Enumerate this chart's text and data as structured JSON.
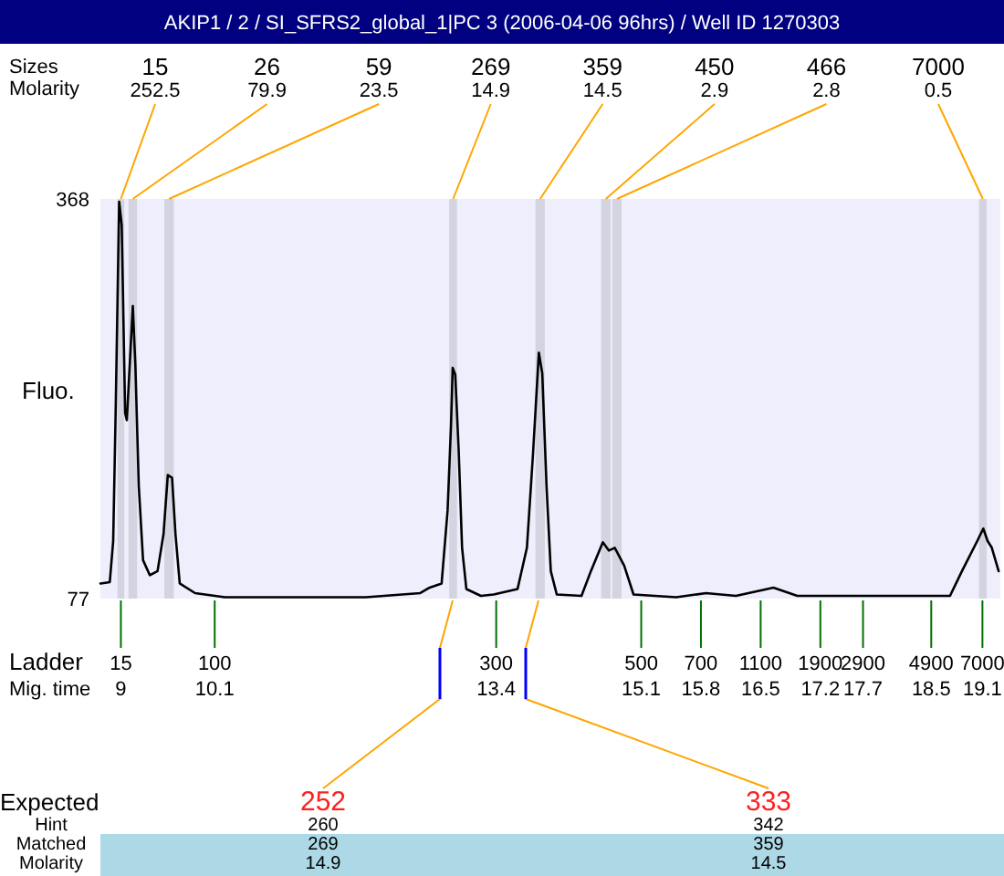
{
  "chart_data": {
    "type": "line",
    "title": "AKIP1 / 2 / SI_SFRS2_global_1|PC 3 (2006-04-06 96hrs) / Well ID 1270303",
    "ylabel": "Fluo.",
    "xlabel": "Mig. time",
    "xlim": [
      8.76,
      19.31
    ],
    "xticks": [
      9,
      10.1,
      13.4,
      15.1,
      15.8,
      16.5,
      17.2,
      17.7,
      18.5,
      19.1
    ],
    "ylim": [
      77,
      368
    ],
    "yticks": [
      77,
      368
    ],
    "color": "#000000",
    "x": [
      8.76,
      8.87,
      8.91,
      8.94,
      8.98,
      9.01,
      9.05,
      9.07,
      9.14,
      9.17,
      9.21,
      9.26,
      9.34,
      9.43,
      9.5,
      9.55,
      9.6,
      9.64,
      9.69,
      9.87,
      10.22,
      11.87,
      12.51,
      12.62,
      12.76,
      12.83,
      12.87,
      12.89,
      12.92,
      12.96,
      13.0,
      13.05,
      13.22,
      13.37,
      13.65,
      13.76,
      13.83,
      13.9,
      13.94,
      13.99,
      14.04,
      14.11,
      14.4,
      14.51,
      14.65,
      14.72,
      14.79,
      14.9,
      15.01,
      15.51,
      15.86,
      16.21,
      16.65,
      16.93,
      18.72,
      18.86,
      19.04,
      19.11,
      19.16,
      19.21,
      19.29
    ],
    "values": [
      88,
      89,
      119,
      217,
      366,
      349,
      212,
      207,
      290,
      247,
      159,
      105,
      94,
      97,
      124,
      167,
      165,
      124,
      88,
      81,
      78,
      78,
      81,
      85,
      88,
      141,
      203,
      245,
      240,
      185,
      114,
      84,
      79,
      80,
      84,
      114,
      181,
      256,
      241,
      159,
      97,
      80,
      79,
      97,
      118,
      112,
      114,
      101,
      80,
      78,
      81,
      79,
      85,
      79,
      79,
      97,
      119,
      128,
      119,
      114,
      97
    ],
    "bands": [
      {
        "axis": "x",
        "from": 8.96,
        "to": 9.04,
        "label": "15",
        "color": "#d4d4e0"
      },
      {
        "axis": "x",
        "from": 9.09,
        "to": 9.19,
        "label": "26",
        "color": "#d4d4e0"
      },
      {
        "axis": "x",
        "from": 9.51,
        "to": 9.62,
        "label": "59",
        "color": "#d4d4e0"
      },
      {
        "axis": "x",
        "from": 12.85,
        "to": 12.94,
        "label": "269",
        "color": "#d4d4e0"
      },
      {
        "axis": "x",
        "from": 13.86,
        "to": 13.97,
        "label": "359",
        "color": "#d4d4e0"
      },
      {
        "axis": "x",
        "from": 14.63,
        "to": 14.74,
        "label": "450",
        "color": "#d4d4e0"
      },
      {
        "axis": "x",
        "from": 14.76,
        "to": 14.87,
        "label": "466",
        "color": "#d4d4e0"
      },
      {
        "axis": "x",
        "from": 19.06,
        "to": 19.15,
        "label": "7000",
        "color": "#d4d4e0"
      }
    ],
    "annotations": [
      "Sizes",
      "Molarity",
      {
        "text": "252.5",
        "x": 9.0,
        "y": 368
      },
      {
        "text": "79.9",
        "x": 9.14,
        "y": 368
      },
      {
        "text": "23.5",
        "x": 9.57,
        "y": 368
      },
      {
        "text": "14.9",
        "x": 12.9,
        "y": 368
      },
      {
        "text": "14.5",
        "x": 13.92,
        "y": 368
      },
      {
        "text": "2.9",
        "x": 14.69,
        "y": 368
      },
      {
        "text": "2.8",
        "x": 14.82,
        "y": 368
      },
      {
        "text": "0.5",
        "x": 19.11,
        "y": 368
      },
      "Ladder",
      {
        "text": "15",
        "x": 9,
        "y": 77
      },
      {
        "text": "100",
        "x": 10.1,
        "y": 77
      },
      {
        "text": "300",
        "x": 13.4,
        "y": 77
      },
      {
        "text": "500",
        "x": 15.1,
        "y": 77
      },
      {
        "text": "700",
        "x": 15.8,
        "y": 77
      },
      {
        "text": "1100",
        "x": 16.5,
        "y": 77
      },
      {
        "text": "1900",
        "x": 17.2,
        "y": 77
      },
      {
        "text": "2900",
        "x": 17.7,
        "y": 77
      },
      {
        "text": "4900",
        "x": 18.5,
        "y": 77
      },
      {
        "text": "7000",
        "x": 19.1,
        "y": 77
      },
      "Expected",
      "Hint",
      "Matched",
      "Molarity",
      "252",
      "260",
      "269",
      "14.9",
      "333",
      "342",
      "359",
      "14.5"
    ]
  }
}
